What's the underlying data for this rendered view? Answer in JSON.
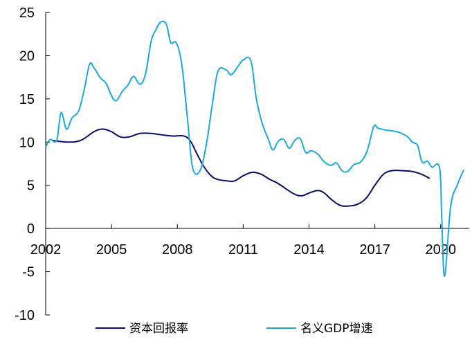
{
  "chart_data": {
    "type": "line",
    "title": "",
    "xlabel": "",
    "ylabel": "",
    "xlim": [
      2002,
      2021.3
    ],
    "ylim": [
      -10,
      25
    ],
    "grid": false,
    "legend_position": "bottom",
    "x_ticks": [
      "2002",
      "2005",
      "2008",
      "2011",
      "2014",
      "2017",
      "2020"
    ],
    "y_ticks": [
      "25",
      "20",
      "15",
      "10",
      "5",
      "0",
      "-5",
      "-10"
    ],
    "series": [
      {
        "name": "资本回报率",
        "color": "#0a0a6b",
        "points": [
          [
            2002.3,
            10.2
          ],
          [
            2003.0,
            10.0
          ],
          [
            2003.6,
            10.2
          ],
          [
            2004.2,
            11.2
          ],
          [
            2004.6,
            11.5
          ],
          [
            2005.0,
            11.2
          ],
          [
            2005.4,
            10.6
          ],
          [
            2005.8,
            10.6
          ],
          [
            2006.3,
            11.0
          ],
          [
            2006.8,
            11.0
          ],
          [
            2007.4,
            10.8
          ],
          [
            2007.8,
            10.7
          ],
          [
            2008.3,
            10.7
          ],
          [
            2008.6,
            10.1
          ],
          [
            2008.9,
            8.6
          ],
          [
            2009.2,
            7.2
          ],
          [
            2009.5,
            6.2
          ],
          [
            2009.8,
            5.7
          ],
          [
            2010.3,
            5.5
          ],
          [
            2010.6,
            5.5
          ],
          [
            2011.0,
            6.1
          ],
          [
            2011.4,
            6.5
          ],
          [
            2011.8,
            6.3
          ],
          [
            2012.2,
            5.7
          ],
          [
            2012.6,
            5.2
          ],
          [
            2013.0,
            4.5
          ],
          [
            2013.4,
            3.9
          ],
          [
            2013.7,
            3.8
          ],
          [
            2014.0,
            4.1
          ],
          [
            2014.4,
            4.4
          ],
          [
            2014.7,
            4.1
          ],
          [
            2015.0,
            3.4
          ],
          [
            2015.4,
            2.7
          ],
          [
            2015.8,
            2.6
          ],
          [
            2016.2,
            2.8
          ],
          [
            2016.6,
            3.5
          ],
          [
            2017.0,
            5.0
          ],
          [
            2017.4,
            6.3
          ],
          [
            2017.8,
            6.7
          ],
          [
            2018.2,
            6.7
          ],
          [
            2018.7,
            6.6
          ],
          [
            2019.1,
            6.3
          ],
          [
            2019.5,
            5.8
          ]
        ]
      },
      {
        "name": "名义GDP增速",
        "color": "#1ba9dd",
        "points": [
          [
            2002.0,
            9.4
          ],
          [
            2002.2,
            10.3
          ],
          [
            2002.5,
            10.2
          ],
          [
            2002.7,
            13.4
          ],
          [
            2002.95,
            11.5
          ],
          [
            2003.2,
            12.8
          ],
          [
            2003.5,
            13.6
          ],
          [
            2003.75,
            16.0
          ],
          [
            2004.0,
            19.0
          ],
          [
            2004.2,
            18.6
          ],
          [
            2004.5,
            17.4
          ],
          [
            2004.75,
            16.8
          ],
          [
            2005.15,
            14.8
          ],
          [
            2005.5,
            15.9
          ],
          [
            2005.75,
            16.6
          ],
          [
            2006.0,
            17.6
          ],
          [
            2006.3,
            16.7
          ],
          [
            2006.55,
            17.9
          ],
          [
            2006.8,
            21.6
          ],
          [
            2007.0,
            22.9
          ],
          [
            2007.25,
            23.9
          ],
          [
            2007.5,
            23.6
          ],
          [
            2007.7,
            21.5
          ],
          [
            2007.95,
            21.5
          ],
          [
            2008.2,
            19.0
          ],
          [
            2008.45,
            13.0
          ],
          [
            2008.7,
            7.0
          ],
          [
            2009.05,
            6.8
          ],
          [
            2009.35,
            10.2
          ],
          [
            2009.6,
            14.5
          ],
          [
            2009.85,
            18.2
          ],
          [
            2010.2,
            18.4
          ],
          [
            2010.45,
            17.8
          ],
          [
            2010.75,
            18.7
          ],
          [
            2011.0,
            19.5
          ],
          [
            2011.35,
            19.4
          ],
          [
            2011.6,
            15.0
          ],
          [
            2011.85,
            12.3
          ],
          [
            2012.15,
            10.3
          ],
          [
            2012.35,
            9.1
          ],
          [
            2012.6,
            10.1
          ],
          [
            2012.85,
            10.3
          ],
          [
            2013.1,
            9.3
          ],
          [
            2013.35,
            10.2
          ],
          [
            2013.6,
            10.4
          ],
          [
            2013.85,
            8.8
          ],
          [
            2014.1,
            9.0
          ],
          [
            2014.4,
            8.6
          ],
          [
            2014.7,
            7.7
          ],
          [
            2015.0,
            7.3
          ],
          [
            2015.25,
            7.6
          ],
          [
            2015.5,
            6.7
          ],
          [
            2015.75,
            6.6
          ],
          [
            2016.05,
            7.4
          ],
          [
            2016.35,
            7.7
          ],
          [
            2016.65,
            9.0
          ],
          [
            2016.95,
            11.8
          ],
          [
            2017.15,
            11.6
          ],
          [
            2017.5,
            11.4
          ],
          [
            2018.0,
            11.2
          ],
          [
            2018.45,
            10.7
          ],
          [
            2018.7,
            10.0
          ],
          [
            2018.95,
            9.6
          ],
          [
            2019.15,
            7.7
          ],
          [
            2019.4,
            7.8
          ],
          [
            2019.6,
            7.1
          ],
          [
            2019.95,
            7.0
          ],
          [
            2020.05,
            1.0
          ],
          [
            2020.18,
            -5.5
          ],
          [
            2020.45,
            2.5
          ],
          [
            2020.75,
            5.0
          ],
          [
            2021.05,
            6.8
          ]
        ]
      }
    ]
  }
}
